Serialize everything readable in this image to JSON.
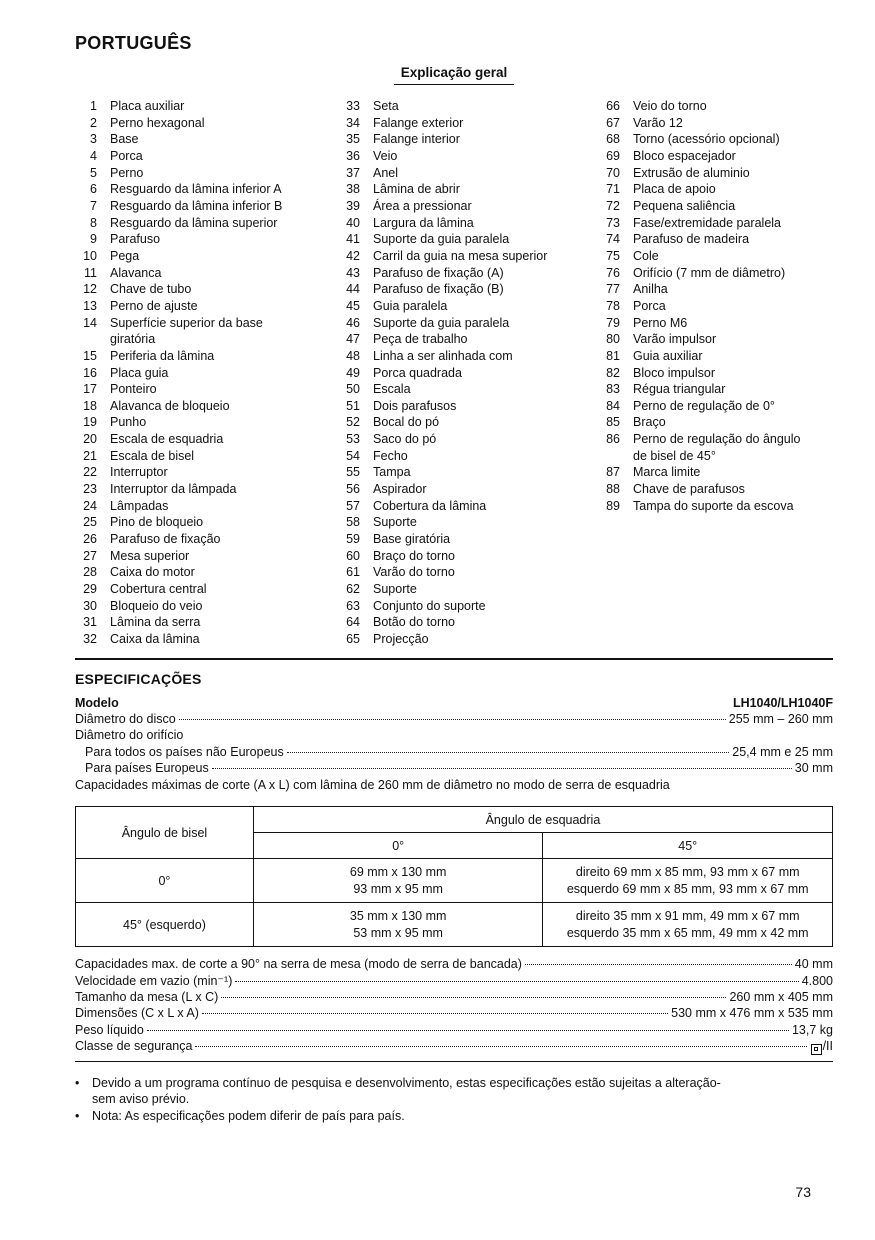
{
  "page": {
    "language_title": "PORTUGUÊS",
    "section_title": "Explicação geral",
    "page_number": "73"
  },
  "parts_list": {
    "columns": [
      {
        "items": [
          {
            "num": "1",
            "label": "Placa auxiliar"
          },
          {
            "num": "2",
            "label": "Perno hexagonal"
          },
          {
            "num": "3",
            "label": "Base"
          },
          {
            "num": "4",
            "label": "Porca"
          },
          {
            "num": "5",
            "label": "Perno"
          },
          {
            "num": "6",
            "label": "Resguardo da lâmina inferior A"
          },
          {
            "num": "7",
            "label": "Resguardo da lâmina inferior B"
          },
          {
            "num": "8",
            "label": "Resguardo da lâmina superior"
          },
          {
            "num": "9",
            "label": "Parafuso"
          },
          {
            "num": "10",
            "label": "Pega"
          },
          {
            "num": "11",
            "label": "Alavanca"
          },
          {
            "num": "12",
            "label": "Chave de tubo"
          },
          {
            "num": "13",
            "label": "Perno de ajuste"
          },
          {
            "num": "14",
            "label": "Superfície superior da base\ngiratória"
          },
          {
            "num": "15",
            "label": "Periferia da lâmina"
          },
          {
            "num": "16",
            "label": "Placa guia"
          },
          {
            "num": "17",
            "label": "Ponteiro"
          },
          {
            "num": "18",
            "label": "Alavanca de bloqueio"
          },
          {
            "num": "19",
            "label": "Punho"
          },
          {
            "num": "20",
            "label": "Escala de esquadria"
          },
          {
            "num": "21",
            "label": "Escala de bisel"
          },
          {
            "num": "22",
            "label": "Interruptor"
          },
          {
            "num": "23",
            "label": "Interruptor da lâmpada"
          },
          {
            "num": "24",
            "label": "Lâmpadas"
          },
          {
            "num": "25",
            "label": "Pino de bloqueio"
          },
          {
            "num": "26",
            "label": "Parafuso de fixação"
          },
          {
            "num": "27",
            "label": "Mesa superior"
          },
          {
            "num": "28",
            "label": "Caixa do motor"
          },
          {
            "num": "29",
            "label": "Cobertura central"
          },
          {
            "num": "30",
            "label": "Bloqueio do veio"
          },
          {
            "num": "31",
            "label": "Lâmina da serra"
          },
          {
            "num": "32",
            "label": "Caixa da lâmina"
          }
        ]
      },
      {
        "items": [
          {
            "num": "33",
            "label": "Seta"
          },
          {
            "num": "34",
            "label": "Falange exterior"
          },
          {
            "num": "35",
            "label": "Falange interior"
          },
          {
            "num": "36",
            "label": "Veio"
          },
          {
            "num": "37",
            "label": "Anel"
          },
          {
            "num": "38",
            "label": "Lâmina de abrir"
          },
          {
            "num": "39",
            "label": "Área a pressionar"
          },
          {
            "num": "40",
            "label": "Largura da lâmina"
          },
          {
            "num": "41",
            "label": "Suporte da guia paralela"
          },
          {
            "num": "42",
            "label": "Carril da guia na mesa superior"
          },
          {
            "num": "43",
            "label": "Parafuso de fixação (A)"
          },
          {
            "num": "44",
            "label": "Parafuso de fixação (B)"
          },
          {
            "num": "45",
            "label": "Guia paralela"
          },
          {
            "num": "46",
            "label": "Suporte da guia paralela"
          },
          {
            "num": "47",
            "label": "Peça de trabalho"
          },
          {
            "num": "48",
            "label": "Linha a ser alinhada com"
          },
          {
            "num": "49",
            "label": "Porca quadrada"
          },
          {
            "num": "50",
            "label": "Escala"
          },
          {
            "num": "51",
            "label": "Dois parafusos"
          },
          {
            "num": "52",
            "label": "Bocal do pó"
          },
          {
            "num": "53",
            "label": "Saco do pó"
          },
          {
            "num": "54",
            "label": "Fecho"
          },
          {
            "num": "55",
            "label": "Tampa"
          },
          {
            "num": "56",
            "label": "Aspirador"
          },
          {
            "num": "57",
            "label": "Cobertura da lâmina"
          },
          {
            "num": "58",
            "label": "Suporte"
          },
          {
            "num": "59",
            "label": "Base giratória"
          },
          {
            "num": "60",
            "label": "Braço do torno"
          },
          {
            "num": "61",
            "label": "Varão do torno"
          },
          {
            "num": "62",
            "label": "Suporte"
          },
          {
            "num": "63",
            "label": "Conjunto do suporte"
          },
          {
            "num": "64",
            "label": "Botão do torno"
          },
          {
            "num": "65",
            "label": "Projecção"
          }
        ]
      },
      {
        "items": [
          {
            "num": "66",
            "label": "Veio do torno"
          },
          {
            "num": "67",
            "label": "Varão 12"
          },
          {
            "num": "68",
            "label": "Torno (acessório opcional)"
          },
          {
            "num": "69",
            "label": "Bloco espacejador"
          },
          {
            "num": "70",
            "label": "Extrusão de aluminio"
          },
          {
            "num": "71",
            "label": "Placa de apoio"
          },
          {
            "num": "72",
            "label": "Pequena saliência"
          },
          {
            "num": "73",
            "label": "Fase/extremidade paralela"
          },
          {
            "num": "74",
            "label": "Parafuso de madeira"
          },
          {
            "num": "75",
            "label": "Cole"
          },
          {
            "num": "76",
            "label": "Orifício (7 mm de diâmetro)"
          },
          {
            "num": "77",
            "label": "Anilha"
          },
          {
            "num": "78",
            "label": "Porca"
          },
          {
            "num": "79",
            "label": "Perno M6"
          },
          {
            "num": "80",
            "label": "Varão impulsor"
          },
          {
            "num": "81",
            "label": "Guia auxiliar"
          },
          {
            "num": "82",
            "label": "Bloco impulsor"
          },
          {
            "num": "83",
            "label": "Régua triangular"
          },
          {
            "num": "84",
            "label": "Perno de regulação de 0°"
          },
          {
            "num": "85",
            "label": "Braço"
          },
          {
            "num": "86",
            "label": "Perno de regulação do ângulo\nde bisel de 45°"
          },
          {
            "num": "87",
            "label": "Marca limite"
          },
          {
            "num": "88",
            "label": "Chave de parafusos"
          },
          {
            "num": "89",
            "label": "Tampa do suporte da escova"
          }
        ]
      }
    ]
  },
  "specs": {
    "heading": "ESPECIFICAÇÕES",
    "model_label": "Modelo",
    "model_value": "LH1040/LH1040F",
    "lines_top": [
      {
        "label": "Diâmetro do disco",
        "value": "255 mm – 260 mm",
        "leader": true,
        "indent": false
      },
      {
        "label": "Diâmetro do orifício",
        "value": "",
        "leader": false,
        "indent": false
      },
      {
        "label": "Para todos os países não Europeus",
        "value": "25,4 mm e 25 mm",
        "leader": true,
        "indent": true
      },
      {
        "label": "Para países Europeus ",
        "value": "30 mm",
        "leader": true,
        "indent": true
      },
      {
        "label": "Capacidades máximas de corte (A x L) com lâmina de 260 mm de diâmetro no modo de serra de esquadria",
        "value": "",
        "leader": false,
        "indent": false
      }
    ],
    "table": {
      "corner_header": "Ângulo de bisel",
      "group_header": "Ângulo de esquadria",
      "col_headers": [
        "0°",
        "45°"
      ],
      "rows": [
        {
          "row_header": "0°",
          "cells": [
            [
              "69 mm x 130 mm",
              "93 mm x 95 mm"
            ],
            [
              "direito 69 mm x 85 mm, 93 mm x 67 mm",
              "esquerdo 69 mm x 85 mm, 93 mm x 67 mm"
            ]
          ]
        },
        {
          "row_header": "45° (esquerdo)",
          "cells": [
            [
              "35 mm x 130 mm",
              "53 mm x 95 mm"
            ],
            [
              "direito 35 mm x 91 mm, 49 mm x 67 mm",
              "esquerdo 35 mm x 65 mm, 49 mm x 42 mm"
            ]
          ]
        }
      ]
    },
    "lines_bottom": [
      {
        "label": "Capacidades max. de corte a 90° na serra de mesa (modo de serra de bancada)",
        "value": "40 mm",
        "leader": true,
        "indent": false
      },
      {
        "label": "Velocidade em vazio (min⁻¹) ",
        "value": "4.800",
        "leader": true,
        "indent": false
      },
      {
        "label": "Tamanho da mesa (L x C) ",
        "value": "260 mm x 405 mm",
        "leader": true,
        "indent": false
      },
      {
        "label": "Dimensões (C x L x A)",
        "value": "530 mm x 476 mm x 535 mm",
        "leader": true,
        "indent": false
      },
      {
        "label": "Peso líquido",
        "value": "13,7 kg",
        "leader": true,
        "indent": false
      },
      {
        "label": "Classe de segurança",
        "value": "/II",
        "leader": true,
        "indent": false,
        "icon": "double-insulation"
      }
    ],
    "notes": [
      {
        "bullet": "•",
        "lines": [
          "Devido a um programa contínuo de pesquisa e desenvolvimento, estas especificações estão sujeitas a alteração-",
          "sem aviso prévio."
        ]
      },
      {
        "bullet": "•",
        "lines": [
          "Nota: As especificações podem diferir de país para país."
        ]
      }
    ]
  }
}
